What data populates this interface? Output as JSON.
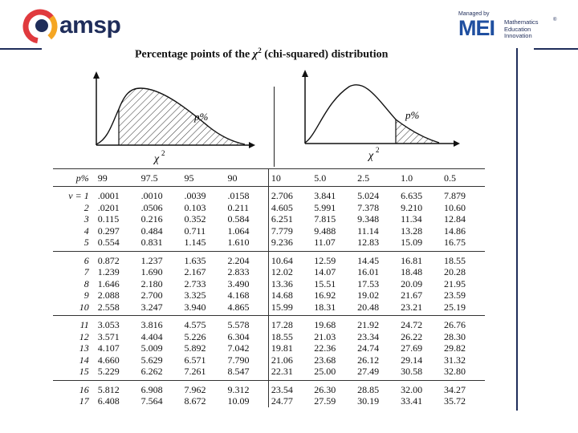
{
  "header": {
    "brand_left": "amsp",
    "managed_by": "Managed by",
    "brand_right": "MEI",
    "brand_right_lines": [
      "Mathematics",
      "Education",
      "Innovation"
    ],
    "registered_mark": "®",
    "brand_colors": {
      "navy": "#1f2d5a",
      "blue": "#1f4fa0",
      "red": "#e03a3e",
      "orange": "#f5a623"
    }
  },
  "document": {
    "title_prefix": "Percentage points of the ",
    "title_symbol": "χ",
    "title_sup": "2",
    "title_suffix": " (chi-squared) distribution"
  },
  "graphs": {
    "left": {
      "p_label": "p%",
      "x_label": "χ",
      "x_sup": "2"
    },
    "right": {
      "p_label": "p%",
      "x_label": "χ",
      "x_sup": "2"
    }
  },
  "table": {
    "header_label": "p%",
    "columns": [
      "99",
      "97.5",
      "95",
      "90",
      "10",
      "5.0",
      "2.5",
      "1.0",
      "0.5"
    ],
    "rows": [
      {
        "v": "v = 1",
        "values": [
          ".0001",
          ".0010",
          ".0039",
          ".0158",
          "2.706",
          "3.841",
          "5.024",
          "6.635",
          "7.879"
        ]
      },
      {
        "v": "2",
        "values": [
          ".0201",
          ".0506",
          "0.103",
          "0.211",
          "4.605",
          "5.991",
          "7.378",
          "9.210",
          "10.60"
        ]
      },
      {
        "v": "3",
        "values": [
          "0.115",
          "0.216",
          "0.352",
          "0.584",
          "6.251",
          "7.815",
          "9.348",
          "11.34",
          "12.84"
        ]
      },
      {
        "v": "4",
        "values": [
          "0.297",
          "0.484",
          "0.711",
          "1.064",
          "7.779",
          "9.488",
          "11.14",
          "13.28",
          "14.86"
        ]
      },
      {
        "v": "5",
        "values": [
          "0.554",
          "0.831",
          "1.145",
          "1.610",
          "9.236",
          "11.07",
          "12.83",
          "15.09",
          "16.75"
        ]
      },
      {
        "v": "6",
        "values": [
          "0.872",
          "1.237",
          "1.635",
          "2.204",
          "10.64",
          "12.59",
          "14.45",
          "16.81",
          "18.55"
        ]
      },
      {
        "v": "7",
        "values": [
          "1.239",
          "1.690",
          "2.167",
          "2.833",
          "12.02",
          "14.07",
          "16.01",
          "18.48",
          "20.28"
        ]
      },
      {
        "v": "8",
        "values": [
          "1.646",
          "2.180",
          "2.733",
          "3.490",
          "13.36",
          "15.51",
          "17.53",
          "20.09",
          "21.95"
        ]
      },
      {
        "v": "9",
        "values": [
          "2.088",
          "2.700",
          "3.325",
          "4.168",
          "14.68",
          "16.92",
          "19.02",
          "21.67",
          "23.59"
        ]
      },
      {
        "v": "10",
        "values": [
          "2.558",
          "3.247",
          "3.940",
          "4.865",
          "15.99",
          "18.31",
          "20.48",
          "23.21",
          "25.19"
        ]
      },
      {
        "v": "11",
        "values": [
          "3.053",
          "3.816",
          "4.575",
          "5.578",
          "17.28",
          "19.68",
          "21.92",
          "24.72",
          "26.76"
        ]
      },
      {
        "v": "12",
        "values": [
          "3.571",
          "4.404",
          "5.226",
          "6.304",
          "18.55",
          "21.03",
          "23.34",
          "26.22",
          "28.30"
        ]
      },
      {
        "v": "13",
        "values": [
          "4.107",
          "5.009",
          "5.892",
          "7.042",
          "19.81",
          "22.36",
          "24.74",
          "27.69",
          "29.82"
        ]
      },
      {
        "v": "14",
        "values": [
          "4.660",
          "5.629",
          "6.571",
          "7.790",
          "21.06",
          "23.68",
          "26.12",
          "29.14",
          "31.32"
        ]
      },
      {
        "v": "15",
        "values": [
          "5.229",
          "6.262",
          "7.261",
          "8.547",
          "22.31",
          "25.00",
          "27.49",
          "30.58",
          "32.80"
        ]
      },
      {
        "v": "16",
        "values": [
          "5.812",
          "6.908",
          "7.962",
          "9.312",
          "23.54",
          "26.30",
          "28.85",
          "32.00",
          "34.27"
        ]
      },
      {
        "v": "17",
        "values": [
          "6.408",
          "7.564",
          "8.672",
          "10.09",
          "24.77",
          "27.59",
          "30.19",
          "33.41",
          "35.72"
        ]
      }
    ]
  }
}
